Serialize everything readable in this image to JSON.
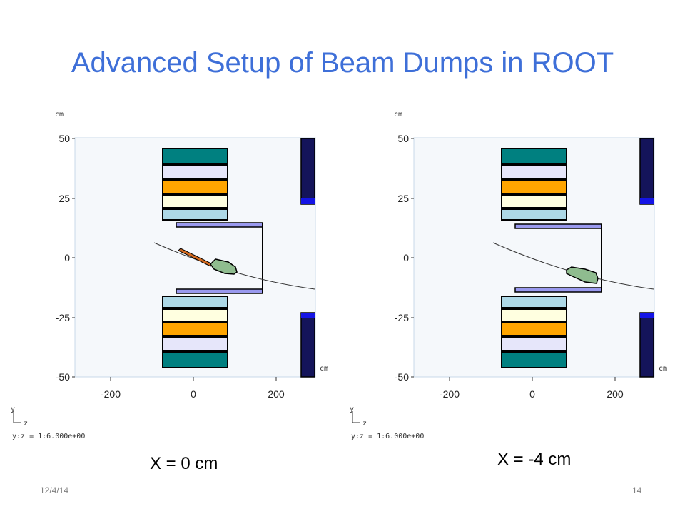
{
  "slide": {
    "title": "Advanced Setup of Beam Dumps in ROOT",
    "date": "12/4/14",
    "page": "14"
  },
  "colors": {
    "title": "#3e6fd8",
    "teal": "#008080",
    "lavender": "#e6e6fa",
    "orange": "#ffa500",
    "cream": "#ffffe0",
    "lightblue": "#add8e6",
    "purple": "#9999ee",
    "green": "#8fbc8f",
    "navy": "#14145a",
    "blue": "#1414e6",
    "background": "#f5f8fb"
  },
  "panels": [
    {
      "caption": "X = 0 cm",
      "y_unit": "cm",
      "z_unit": "cm",
      "y_ticks": [
        "50",
        "25",
        "0",
        "-25",
        "-50"
      ],
      "z_ticks": [
        "-200",
        "0",
        "200"
      ],
      "axis_y": "y",
      "axis_z": "z",
      "ratio_label": "y:z = 1:6.000e+00"
    },
    {
      "caption": "X = -4 cm",
      "y_unit": "cm",
      "z_unit": "cm",
      "y_ticks": [
        "50",
        "25",
        "0",
        "-25",
        "-50"
      ],
      "z_ticks": [
        "-200",
        "0",
        "200"
      ],
      "axis_y": "y",
      "axis_z": "z",
      "ratio_label": "y:z = 1:6.000e+00"
    }
  ]
}
